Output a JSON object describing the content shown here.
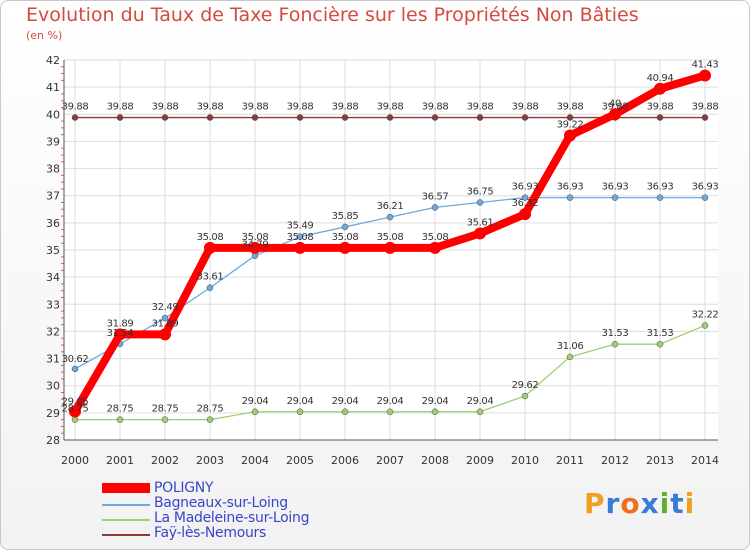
{
  "title": "Evolution du Taux de Taxe Foncière sur les Propriétés Non Bâties",
  "unit": "(en %)",
  "brand": {
    "text": "Proxiti",
    "letters": [
      "P",
      "r",
      "o",
      "x",
      "i",
      "t",
      "i"
    ],
    "colors": [
      "#f0a020",
      "#3a7bd5",
      "#f07020",
      "#3a7bd5",
      "#60b030",
      "#3a7bd5",
      "#f0a020"
    ]
  },
  "chart_data": {
    "type": "line",
    "x": [
      "2000",
      "2001",
      "2002",
      "2003",
      "2004",
      "2005",
      "2006",
      "2007",
      "2008",
      "2009",
      "2010",
      "2011",
      "2012",
      "2013",
      "2014"
    ],
    "ylim": [
      28,
      42
    ],
    "yticks": [
      28,
      29,
      30,
      31,
      32,
      33,
      34,
      35,
      36,
      37,
      38,
      39,
      40,
      41,
      42
    ],
    "grid": true,
    "legend_position": "bottom-left",
    "series": [
      {
        "name": "POLIGNY",
        "color": "#ff0000",
        "values": [
          29.05,
          31.89,
          31.89,
          35.08,
          35.08,
          35.08,
          35.08,
          35.08,
          35.08,
          35.61,
          36.32,
          39.22,
          40,
          40.94,
          41.43
        ],
        "labels": [
          "29.05",
          "31.89",
          "31.89",
          "35.08",
          "35.08",
          "35.08",
          "35.08",
          "35.08",
          "35.08",
          "35.61",
          "36.32",
          "39.22",
          "40",
          "40.94",
          "41.43"
        ]
      },
      {
        "name": "Bagneaux-sur-Loing",
        "color": "#6fa8dc",
        "values": [
          30.62,
          31.54,
          32.49,
          33.61,
          34.79,
          35.49,
          35.85,
          36.21,
          36.57,
          36.75,
          36.93,
          36.93,
          36.93,
          36.93,
          36.93
        ],
        "labels": [
          "30.62",
          "31.54",
          "32.49",
          "33.61",
          "34.79",
          "35.49",
          "35.85",
          "36.21",
          "36.57",
          "36.75",
          "36.93",
          "36.93",
          "36.93",
          "36.93",
          "36.93"
        ]
      },
      {
        "name": "La Madeleine-sur-Loing",
        "color": "#9cd070",
        "values": [
          28.75,
          28.75,
          28.75,
          28.75,
          29.04,
          29.04,
          29.04,
          29.04,
          29.04,
          29.04,
          29.62,
          31.06,
          31.53,
          31.53,
          32.22
        ],
        "labels": [
          "28.75",
          "28.75",
          "28.75",
          "28.75",
          "29.04",
          "29.04",
          "29.04",
          "29.04",
          "29.04",
          "29.04",
          "29.62",
          "31.06",
          "31.53",
          "31.53",
          "32.22"
        ]
      },
      {
        "name": "Faÿ-lès-Nemours",
        "color": "#8b3a3a",
        "values": [
          39.88,
          39.88,
          39.88,
          39.88,
          39.88,
          39.88,
          39.88,
          39.88,
          39.88,
          39.88,
          39.88,
          39.88,
          39.88,
          39.88,
          39.88
        ],
        "labels": [
          "39.88",
          "39.88",
          "39.88",
          "39.88",
          "39.88",
          "39.88",
          "39.88",
          "39.88",
          "39.88",
          "39.88",
          "39.88",
          "39.88",
          "39.88",
          "39.88",
          "39.88"
        ]
      }
    ]
  }
}
